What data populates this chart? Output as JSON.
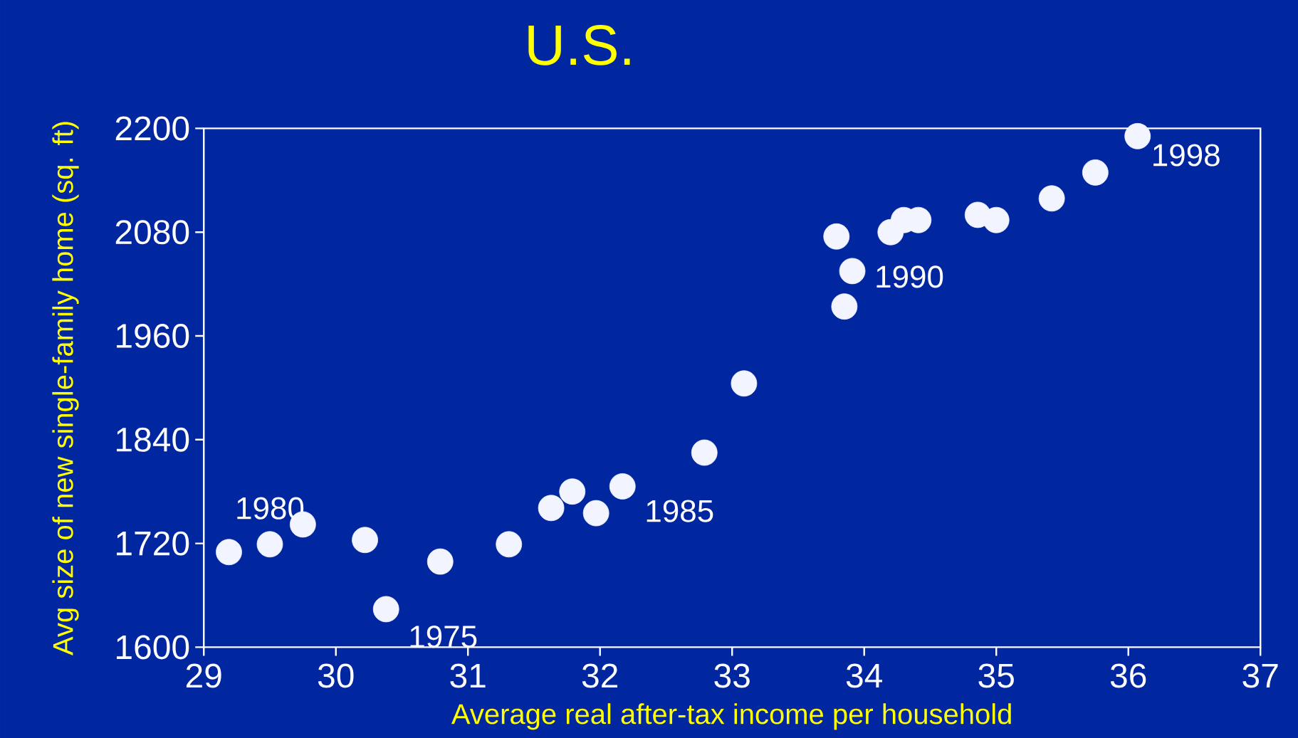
{
  "chart_data": {
    "type": "scatter",
    "title": "U.S.",
    "xlabel": "Average real after-tax income per household",
    "ylabel": "Avg size of new single-family home (sq. ft)",
    "x": [
      29.19,
      29.5,
      29.75,
      30.22,
      30.38,
      30.79,
      31.31,
      31.63,
      31.79,
      31.97,
      32.17,
      32.79,
      33.09,
      33.79,
      33.91,
      33.85,
      34.2,
      34.3,
      34.41,
      34.86,
      35.0,
      35.42,
      35.75,
      36.07
    ],
    "values": [
      1710,
      1719,
      1742,
      1724,
      1644,
      1699,
      1719,
      1761,
      1780,
      1755,
      1786,
      1825,
      1905,
      2075,
      2035,
      1994,
      2080,
      2094,
      2094,
      2100,
      2094,
      2119,
      2149,
      2191
    ],
    "color": "#f2f4ff",
    "marker": "circle",
    "grid": false,
    "xlim": [
      29,
      37
    ],
    "xticks": [
      29,
      30,
      31,
      32,
      33,
      34,
      35,
      36,
      37
    ],
    "ylim": [
      1600,
      2200
    ],
    "yticks": [
      1600,
      1720,
      1840,
      1960,
      2080,
      2200
    ],
    "annotations": [
      {
        "text": "1980",
        "x": 29.5,
        "y": 1719
      },
      {
        "text": "1975",
        "x": 30.38,
        "y": 1644
      },
      {
        "text": "1985",
        "x": 32.17,
        "y": 1786
      },
      {
        "text": "1990",
        "x": 33.91,
        "y": 2035
      },
      {
        "text": "1998",
        "x": 36.07,
        "y": 2191
      }
    ]
  }
}
